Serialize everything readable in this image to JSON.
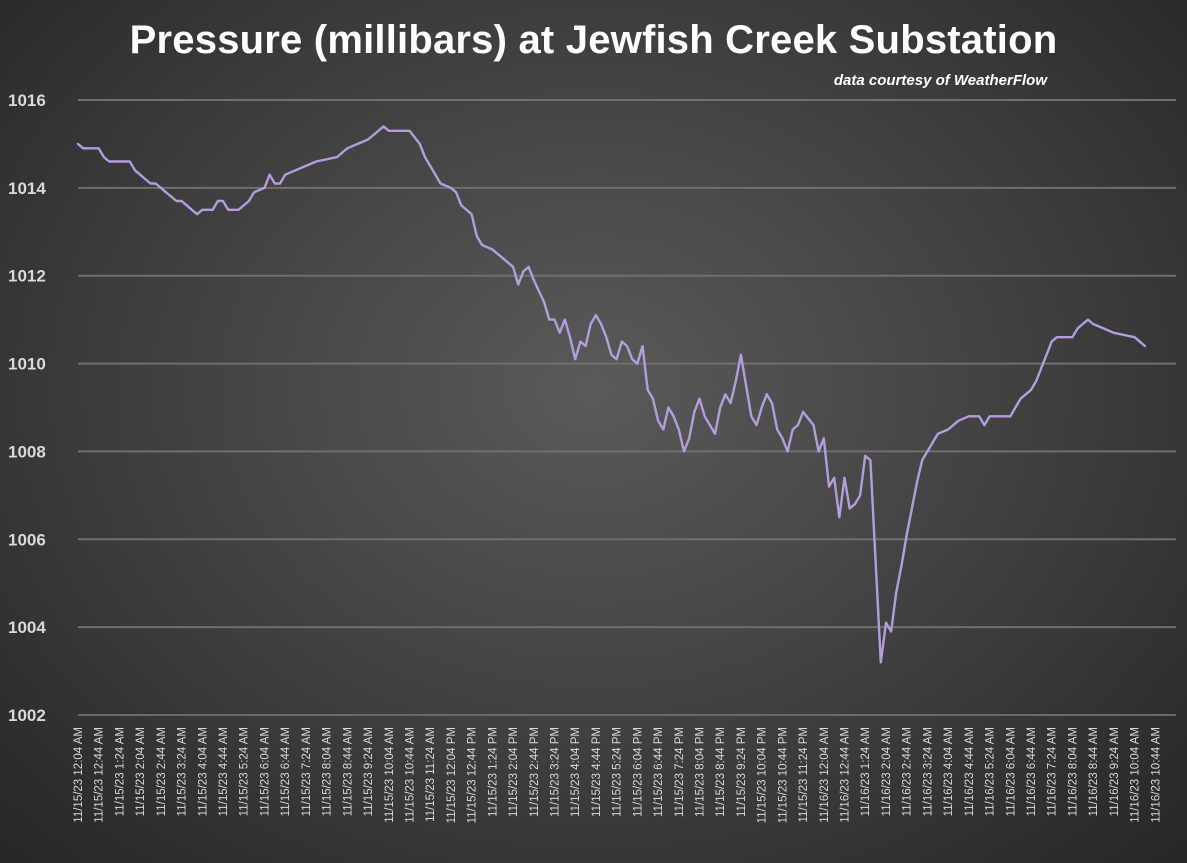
{
  "chart_data": {
    "type": "line",
    "title": "Pressure (millibars) at Jewfish Creek Substation",
    "subtitle": "data courtesy of WeatherFlow",
    "xlabel": "",
    "ylabel": "",
    "ylim": [
      1002,
      1016
    ],
    "yticks": [
      1002,
      1004,
      1006,
      1008,
      1010,
      1012,
      1014,
      1016
    ],
    "grid": true,
    "legend": "none",
    "line_color": "#b39ddb",
    "categories": [
      "11/15/23 12:04 AM",
      "11/15/23 12:44 AM",
      "11/15/23 1:24 AM",
      "11/15/23 2:04 AM",
      "11/15/23 2:44 AM",
      "11/15/23 3:24 AM",
      "11/15/23 4:04 AM",
      "11/15/23 4:44 AM",
      "11/15/23 5:24 AM",
      "11/15/23 6:04 AM",
      "11/15/23 6:44 AM",
      "11/15/23 7:24 AM",
      "11/15/23 8:04 AM",
      "11/15/23 8:44 AM",
      "11/15/23 9:24 AM",
      "11/15/23 10:04 AM",
      "11/15/23 10:44 AM",
      "11/15/23 11:24 AM",
      "11/15/23 12:04 PM",
      "11/15/23 12:44 PM",
      "11/15/23 1:24 PM",
      "11/15/23 2:04 PM",
      "11/15/23 2:44 PM",
      "11/15/23 3:24 PM",
      "11/15/23 4:04 PM",
      "11/15/23 4:44 PM",
      "11/15/23 5:24 PM",
      "11/15/23 6:04 PM",
      "11/15/23 6:44 PM",
      "11/15/23 7:24 PM",
      "11/15/23 8:04 PM",
      "11/15/23 8:44 PM",
      "11/15/23 9:24 PM",
      "11/15/23 10:04 PM",
      "11/15/23 10:44 PM",
      "11/15/23 11:24 PM",
      "11/16/23 12:04 AM",
      "11/16/23 12:44 AM",
      "11/16/23 1:24 AM",
      "11/16/23 2:04 AM",
      "11/16/23 2:44 AM",
      "11/16/23 3:24 AM",
      "11/16/23 4:04 AM",
      "11/16/23 4:44 AM",
      "11/16/23 5:24 AM",
      "11/16/23 6:04 AM",
      "11/16/23 6:44 AM",
      "11/16/23 7:24 AM",
      "11/16/23 8:04 AM",
      "11/16/23 8:44 AM",
      "11/16/23 9:24 AM",
      "11/16/23 10:04 AM",
      "11/16/23 10:44 AM"
    ],
    "x_start": "11/15/23 12:04 AM",
    "x_end": "11/16/23 11:24 AM",
    "points": [
      [
        "11/15/23 12:04 AM",
        1015.0
      ],
      [
        "11/15/23 12:14 AM",
        1014.9
      ],
      [
        "11/15/23 12:44 AM",
        1014.9
      ],
      [
        "11/15/23 12:54 AM",
        1014.7
      ],
      [
        "11/15/23 1:04 AM",
        1014.6
      ],
      [
        "11/15/23 1:44 AM",
        1014.6
      ],
      [
        "11/15/23 1:54 AM",
        1014.4
      ],
      [
        "11/15/23 2:04 AM",
        1014.3
      ],
      [
        "11/15/23 2:14 AM",
        1014.2
      ],
      [
        "11/15/23 2:24 AM",
        1014.1
      ],
      [
        "11/15/23 2:34 AM",
        1014.1
      ],
      [
        "11/15/23 2:44 AM",
        1014.0
      ],
      [
        "11/15/23 2:54 AM",
        1013.9
      ],
      [
        "11/15/23 3:04 AM",
        1013.8
      ],
      [
        "11/15/23 3:14 AM",
        1013.7
      ],
      [
        "11/15/23 3:24 AM",
        1013.7
      ],
      [
        "11/15/23 3:34 AM",
        1013.6
      ],
      [
        "11/15/23 3:44 AM",
        1013.5
      ],
      [
        "11/15/23 3:54 AM",
        1013.4
      ],
      [
        "11/15/23 4:04 AM",
        1013.5
      ],
      [
        "11/15/23 4:24 AM",
        1013.5
      ],
      [
        "11/15/23 4:34 AM",
        1013.7
      ],
      [
        "11/15/23 4:44 AM",
        1013.7
      ],
      [
        "11/15/23 4:54 AM",
        1013.5
      ],
      [
        "11/15/23 5:14 AM",
        1013.5
      ],
      [
        "11/15/23 5:24 AM",
        1013.6
      ],
      [
        "11/15/23 5:34 AM",
        1013.7
      ],
      [
        "11/15/23 5:44 AM",
        1013.9
      ],
      [
        "11/15/23 6:04 AM",
        1014.0
      ],
      [
        "11/15/23 6:14 AM",
        1014.3
      ],
      [
        "11/15/23 6:24 AM",
        1014.1
      ],
      [
        "11/15/23 6:34 AM",
        1014.1
      ],
      [
        "11/15/23 6:44 AM",
        1014.3
      ],
      [
        "11/15/23 7:04 AM",
        1014.4
      ],
      [
        "11/15/23 7:24 AM",
        1014.5
      ],
      [
        "11/15/23 7:44 AM",
        1014.6
      ],
      [
        "11/15/23 8:24 AM",
        1014.7
      ],
      [
        "11/15/23 8:44 AM",
        1014.9
      ],
      [
        "11/15/23 9:04 AM",
        1015.0
      ],
      [
        "11/15/23 9:24 AM",
        1015.1
      ],
      [
        "11/15/23 9:44 AM",
        1015.3
      ],
      [
        "11/15/23 9:54 AM",
        1015.4
      ],
      [
        "11/15/23 10:04 AM",
        1015.3
      ],
      [
        "11/15/23 10:44 AM",
        1015.3
      ],
      [
        "11/15/23 11:04 AM",
        1015.0
      ],
      [
        "11/15/23 11:14 AM",
        1014.7
      ],
      [
        "11/15/23 11:24 AM",
        1014.5
      ],
      [
        "11/15/23 11:44 AM",
        1014.1
      ],
      [
        "11/15/23 12:04 PM",
        1014.0
      ],
      [
        "11/15/23 12:14 PM",
        1013.9
      ],
      [
        "11/15/23 12:24 PM",
        1013.6
      ],
      [
        "11/15/23 12:44 PM",
        1013.4
      ],
      [
        "11/15/23 12:54 PM",
        1012.9
      ],
      [
        "11/15/23 1:04 PM",
        1012.7
      ],
      [
        "11/15/23 1:24 PM",
        1012.6
      ],
      [
        "11/15/23 1:44 PM",
        1012.4
      ],
      [
        "11/15/23 2:04 PM",
        1012.2
      ],
      [
        "11/15/23 2:14 PM",
        1011.8
      ],
      [
        "11/15/23 2:24 PM",
        1012.1
      ],
      [
        "11/15/23 2:34 PM",
        1012.2
      ],
      [
        "11/15/23 2:44 PM",
        1011.9
      ],
      [
        "11/15/23 3:04 PM",
        1011.4
      ],
      [
        "11/15/23 3:14 PM",
        1011.0
      ],
      [
        "11/15/23 3:24 PM",
        1011.0
      ],
      [
        "11/15/23 3:34 PM",
        1010.7
      ],
      [
        "11/15/23 3:44 PM",
        1011.0
      ],
      [
        "11/15/23 3:54 PM",
        1010.6
      ],
      [
        "11/15/23 4:04 PM",
        1010.1
      ],
      [
        "11/15/23 4:14 PM",
        1010.5
      ],
      [
        "11/15/23 4:24 PM",
        1010.4
      ],
      [
        "11/15/23 4:34 PM",
        1010.9
      ],
      [
        "11/15/23 4:44 PM",
        1011.1
      ],
      [
        "11/15/23 4:54 PM",
        1010.9
      ],
      [
        "11/15/23 5:04 PM",
        1010.6
      ],
      [
        "11/15/23 5:14 PM",
        1010.2
      ],
      [
        "11/15/23 5:24 PM",
        1010.1
      ],
      [
        "11/15/23 5:34 PM",
        1010.5
      ],
      [
        "11/15/23 5:44 PM",
        1010.4
      ],
      [
        "11/15/23 5:54 PM",
        1010.1
      ],
      [
        "11/15/23 6:04 PM",
        1010.0
      ],
      [
        "11/15/23 6:14 PM",
        1010.4
      ],
      [
        "11/15/23 6:24 PM",
        1009.4
      ],
      [
        "11/15/23 6:34 PM",
        1009.2
      ],
      [
        "11/15/23 6:44 PM",
        1008.7
      ],
      [
        "11/15/23 6:54 PM",
        1008.5
      ],
      [
        "11/15/23 7:04 PM",
        1009.0
      ],
      [
        "11/15/23 7:14 PM",
        1008.8
      ],
      [
        "11/15/23 7:24 PM",
        1008.5
      ],
      [
        "11/15/23 7:34 PM",
        1008.0
      ],
      [
        "11/15/23 7:44 PM",
        1008.3
      ],
      [
        "11/15/23 7:54 PM",
        1008.9
      ],
      [
        "11/15/23 8:04 PM",
        1009.2
      ],
      [
        "11/15/23 8:14 PM",
        1008.8
      ],
      [
        "11/15/23 8:24 PM",
        1008.6
      ],
      [
        "11/15/23 8:34 PM",
        1008.4
      ],
      [
        "11/15/23 8:44 PM",
        1009.0
      ],
      [
        "11/15/23 8:54 PM",
        1009.3
      ],
      [
        "11/15/23 9:04 PM",
        1009.1
      ],
      [
        "11/15/23 9:14 PM",
        1009.6
      ],
      [
        "11/15/23 9:24 PM",
        1010.2
      ],
      [
        "11/15/23 9:34 PM",
        1009.5
      ],
      [
        "11/15/23 9:44 PM",
        1008.8
      ],
      [
        "11/15/23 9:54 PM",
        1008.6
      ],
      [
        "11/15/23 10:04 PM",
        1009.0
      ],
      [
        "11/15/23 10:14 PM",
        1009.3
      ],
      [
        "11/15/23 10:24 PM",
        1009.1
      ],
      [
        "11/15/23 10:34 PM",
        1008.5
      ],
      [
        "11/15/23 10:44 PM",
        1008.3
      ],
      [
        "11/15/23 10:54 PM",
        1008.0
      ],
      [
        "11/15/23 11:04 PM",
        1008.5
      ],
      [
        "11/15/23 11:14 PM",
        1008.6
      ],
      [
        "11/15/23 11:24 PM",
        1008.9
      ],
      [
        "11/15/23 11:44 PM",
        1008.6
      ],
      [
        "11/15/23 11:54 PM",
        1008.0
      ],
      [
        "11/16/23 12:04 AM",
        1008.3
      ],
      [
        "11/16/23 12:14 AM",
        1007.2
      ],
      [
        "11/16/23 12:24 AM",
        1007.4
      ],
      [
        "11/16/23 12:34 AM",
        1006.5
      ],
      [
        "11/16/23 12:44 AM",
        1007.4
      ],
      [
        "11/16/23 12:54 AM",
        1006.7
      ],
      [
        "11/16/23 1:04 AM",
        1006.8
      ],
      [
        "11/16/23 1:14 AM",
        1007.0
      ],
      [
        "11/16/23 1:24 AM",
        1007.9
      ],
      [
        "11/16/23 1:34 AM",
        1007.8
      ],
      [
        "11/16/23 1:44 AM",
        1005.5
      ],
      [
        "11/16/23 1:54 AM",
        1003.2
      ],
      [
        "11/16/23 2:04 AM",
        1004.1
      ],
      [
        "11/16/23 2:14 AM",
        1003.9
      ],
      [
        "11/16/23 2:24 AM",
        1004.8
      ],
      [
        "11/16/23 2:34 AM",
        1005.4
      ],
      [
        "11/16/23 2:44 AM",
        1006.1
      ],
      [
        "11/16/23 2:54 AM",
        1006.7
      ],
      [
        "11/16/23 3:04 AM",
        1007.3
      ],
      [
        "11/16/23 3:14 AM",
        1007.8
      ],
      [
        "11/16/23 3:24 AM",
        1008.0
      ],
      [
        "11/16/23 3:34 AM",
        1008.2
      ],
      [
        "11/16/23 3:44 AM",
        1008.4
      ],
      [
        "11/16/23 4:04 AM",
        1008.5
      ],
      [
        "11/16/23 4:24 AM",
        1008.7
      ],
      [
        "11/16/23 4:44 AM",
        1008.8
      ],
      [
        "11/16/23 5:04 AM",
        1008.8
      ],
      [
        "11/16/23 5:14 AM",
        1008.6
      ],
      [
        "11/16/23 5:24 AM",
        1008.8
      ],
      [
        "11/16/23 6:04 AM",
        1008.8
      ],
      [
        "11/16/23 6:14 AM",
        1009.0
      ],
      [
        "11/16/23 6:24 AM",
        1009.2
      ],
      [
        "11/16/23 6:44 AM",
        1009.4
      ],
      [
        "11/16/23 6:54 AM",
        1009.6
      ],
      [
        "11/16/23 7:04 AM",
        1009.9
      ],
      [
        "11/16/23 7:14 AM",
        1010.2
      ],
      [
        "11/16/23 7:24 AM",
        1010.5
      ],
      [
        "11/16/23 7:34 AM",
        1010.6
      ],
      [
        "11/16/23 8:04 AM",
        1010.6
      ],
      [
        "11/16/23 8:14 AM",
        1010.8
      ],
      [
        "11/16/23 8:24 AM",
        1010.9
      ],
      [
        "11/16/23 8:34 AM",
        1011.0
      ],
      [
        "11/16/23 8:44 AM",
        1010.9
      ],
      [
        "11/16/23 9:04 AM",
        1010.8
      ],
      [
        "11/16/23 9:24 AM",
        1010.7
      ],
      [
        "11/16/23 10:04 AM",
        1010.6
      ],
      [
        "11/16/23 10:24 AM",
        1010.4
      ]
    ]
  }
}
